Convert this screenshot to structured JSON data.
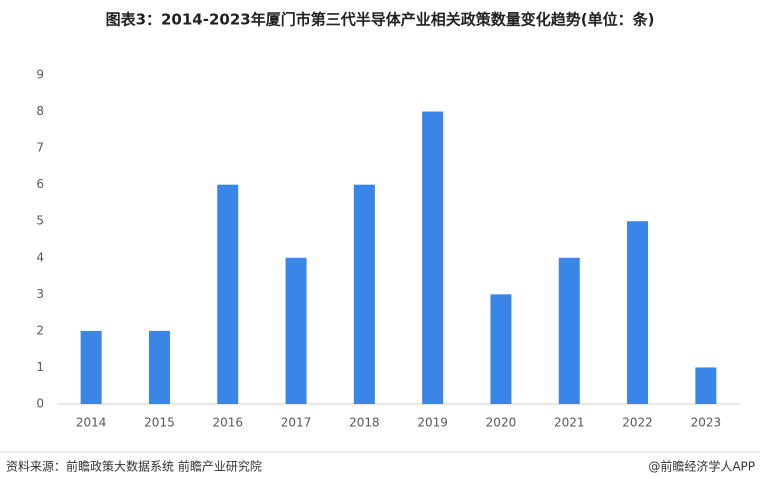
{
  "chart_data": {
    "type": "bar",
    "title": "图表3：2014-2023年厦门市第三代半导体产业相关政策数量变化趋势(单位：条)",
    "categories": [
      "2014",
      "2015",
      "2016",
      "2017",
      "2018",
      "2019",
      "2020",
      "2021",
      "2022",
      "2023"
    ],
    "values": [
      2,
      2,
      6,
      4,
      6,
      8,
      3,
      4,
      5,
      1
    ],
    "color": "#3a86e8",
    "ylim": [
      0,
      9
    ],
    "yticks": [
      0,
      1,
      2,
      3,
      4,
      5,
      6,
      7,
      8,
      9
    ],
    "grid": false,
    "source": "资料来源：前瞻政策大数据系统 前瞻产业研究院",
    "credit": "@前瞻经济学人APP"
  }
}
